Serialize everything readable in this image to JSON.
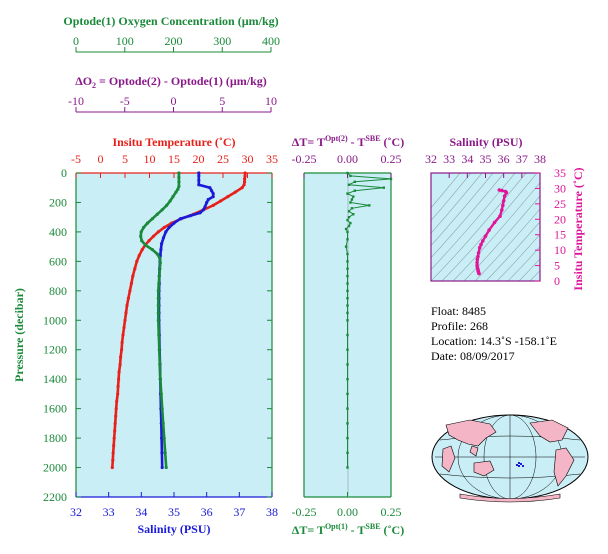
{
  "colors": {
    "green": "#1a8a3a",
    "red": "#e8201a",
    "blue": "#1a1ad8",
    "purple": "#8a1a8a",
    "magenta": "#e0169a",
    "panel_bg": "#c9eef6",
    "land": "#f4b6c6",
    "ocean": "#c9eef6"
  },
  "oxygen_axis": {
    "title": "Optode(1) Oxygen Concentration (µm/kg)",
    "ticks": [
      "0",
      "100",
      "200",
      "300",
      "400"
    ]
  },
  "delta_o2_axis": {
    "title_prefix": "ΔO",
    "title_sub": "2",
    "title_rest": " = Optode(2) - Optode(1)     (µm/kg)",
    "ticks": [
      "-10",
      "-5",
      "0",
      "5",
      "10"
    ]
  },
  "main_panel": {
    "top_title": "Insitu Temperature (˚C)",
    "top_ticks": [
      "-5",
      "0",
      "5",
      "10",
      "15",
      "20",
      "25",
      "30",
      "35"
    ],
    "bottom_title": "Salinity (PSU)",
    "bottom_ticks": [
      "32",
      "33",
      "34",
      "35",
      "36",
      "37",
      "38"
    ],
    "left_title": "Pressure (decibar)",
    "left_ticks": [
      "0",
      "200",
      "400",
      "600",
      "800",
      "1000",
      "1200",
      "1400",
      "1600",
      "1800",
      "2000",
      "2200"
    ]
  },
  "dt_panel": {
    "top_title_pre": "ΔT= T",
    "top_title_sup1": "Opt(2)",
    "top_title_mid": " - T",
    "top_title_sup2": "SBE",
    "top_title_post": " (˚C)",
    "top_ticks": [
      "-0.25",
      "0.00",
      "0.25"
    ],
    "bottom_title_pre": "ΔT= T",
    "bottom_title_sup1": "Opt(1)",
    "bottom_title_mid": " - T",
    "bottom_title_sup2": "SBE",
    "bottom_title_post": " (˚C)",
    "bottom_ticks": [
      "-0.25",
      "0.00",
      "0.25"
    ]
  },
  "ts_panel": {
    "top_title": "Salinity (PSU)",
    "top_ticks": [
      "32",
      "33",
      "34",
      "35",
      "36",
      "37",
      "38"
    ],
    "right_title": "Insitu Temperature (˚C)",
    "right_ticks": [
      "0",
      "5",
      "10",
      "15",
      "20",
      "25",
      "30",
      "35"
    ]
  },
  "float_info": {
    "float_line": "Float:  8485",
    "profile_line": "Profile:  268",
    "location_line": "Location:  14.3˚S  -158.1˚E",
    "date_line": "Date:  08/09/2017"
  },
  "chart_data": [
    {
      "type": "line",
      "name_hint": "profiles",
      "ylabel": "Pressure (decibar)",
      "ylim": [
        2200,
        0
      ],
      "series": [
        {
          "name": "Insitu Temperature (˚C)",
          "axis": "temperature",
          "xlim": [
            -5,
            35
          ],
          "points": [
            [
              29.5,
              0
            ],
            [
              29.5,
              20
            ],
            [
              29.4,
              40
            ],
            [
              29.4,
              60
            ],
            [
              29.3,
              80
            ],
            [
              28.9,
              100
            ],
            [
              27.5,
              130
            ],
            [
              26.0,
              160
            ],
            [
              24.5,
              190
            ],
            [
              23.0,
              220
            ],
            [
              21.0,
              250
            ],
            [
              19.0,
              280
            ],
            [
              16.5,
              310
            ],
            [
              14.5,
              340
            ],
            [
              13.0,
              370
            ],
            [
              11.8,
              400
            ],
            [
              10.8,
              430
            ],
            [
              9.9,
              460
            ],
            [
              9.1,
              490
            ],
            [
              8.5,
              520
            ],
            [
              7.9,
              560
            ],
            [
              7.4,
              600
            ],
            [
              7.0,
              650
            ],
            [
              6.6,
              700
            ],
            [
              6.3,
              750
            ],
            [
              6.0,
              800
            ],
            [
              5.7,
              850
            ],
            [
              5.4,
              900
            ],
            [
              5.2,
              950
            ],
            [
              5.0,
              1000
            ],
            [
              4.8,
              1050
            ],
            [
              4.6,
              1100
            ],
            [
              4.4,
              1150
            ],
            [
              4.3,
              1200
            ],
            [
              4.1,
              1250
            ],
            [
              4.0,
              1300
            ],
            [
              3.8,
              1350
            ],
            [
              3.7,
              1400
            ],
            [
              3.6,
              1450
            ],
            [
              3.5,
              1500
            ],
            [
              3.3,
              1550
            ],
            [
              3.2,
              1600
            ],
            [
              3.1,
              1650
            ],
            [
              3.0,
              1700
            ],
            [
              2.9,
              1750
            ],
            [
              2.8,
              1800
            ],
            [
              2.7,
              1850
            ],
            [
              2.6,
              1900
            ],
            [
              2.5,
              1950
            ],
            [
              2.4,
              2000
            ]
          ]
        },
        {
          "name": "Salinity (PSU)",
          "axis": "salinity",
          "xlim": [
            32,
            38
          ],
          "points": [
            [
              35.76,
              0
            ],
            [
              35.76,
              20
            ],
            [
              35.76,
              50
            ],
            [
              35.76,
              80
            ],
            [
              36.1,
              100
            ],
            [
              36.15,
              120
            ],
            [
              36.2,
              140
            ],
            [
              36.2,
              160
            ],
            [
              36.05,
              180
            ],
            [
              36.0,
              200
            ],
            [
              35.95,
              230
            ],
            [
              35.9,
              250
            ],
            [
              35.8,
              270
            ],
            [
              35.5,
              290
            ],
            [
              35.2,
              310
            ],
            [
              35.0,
              340
            ],
            [
              34.85,
              370
            ],
            [
              34.75,
              400
            ],
            [
              34.68,
              440
            ],
            [
              34.62,
              480
            ],
            [
              34.6,
              520
            ],
            [
              34.58,
              560
            ],
            [
              34.57,
              600
            ],
            [
              34.56,
              650
            ],
            [
              34.55,
              700
            ],
            [
              34.55,
              750
            ],
            [
              34.54,
              800
            ],
            [
              34.54,
              850
            ],
            [
              34.54,
              900
            ],
            [
              34.54,
              950
            ],
            [
              34.54,
              1000
            ],
            [
              34.55,
              1100
            ],
            [
              34.56,
              1200
            ],
            [
              34.57,
              1300
            ],
            [
              34.58,
              1400
            ],
            [
              34.59,
              1500
            ],
            [
              34.6,
              1600
            ],
            [
              34.61,
              1700
            ],
            [
              34.62,
              1800
            ],
            [
              34.63,
              1900
            ],
            [
              34.64,
              2000
            ]
          ]
        },
        {
          "name": "Optode(1) Oxygen Concentration (µm/kg)",
          "axis": "oxygen",
          "xlim": [
            0,
            400
          ],
          "points": [
            [
              210,
              0
            ],
            [
              210,
              30
            ],
            [
              210,
              60
            ],
            [
              210,
              90
            ],
            [
              208,
              110
            ],
            [
              204,
              130
            ],
            [
              198,
              160
            ],
            [
              192,
              190
            ],
            [
              185,
              220
            ],
            [
              176,
              250
            ],
            [
              166,
              280
            ],
            [
              156,
              310
            ],
            [
              146,
              340
            ],
            [
              138,
              370
            ],
            [
              133,
              400
            ],
            [
              132,
              430
            ],
            [
              134,
              460
            ],
            [
              142,
              490
            ],
            [
              156,
              520
            ],
            [
              166,
              550
            ],
            [
              171,
              580
            ],
            [
              172,
              610
            ],
            [
              171,
              650
            ],
            [
              170,
              700
            ],
            [
              169,
              750
            ],
            [
              168,
              800
            ],
            [
              168,
              850
            ],
            [
              168,
              900
            ],
            [
              168,
              950
            ],
            [
              168,
              1000
            ],
            [
              169,
              1100
            ],
            [
              170,
              1200
            ],
            [
              171,
              1300
            ],
            [
              172,
              1400
            ],
            [
              174,
              1500
            ],
            [
              176,
              1600
            ],
            [
              178,
              1700
            ],
            [
              180,
              1800
            ],
            [
              182,
              1900
            ],
            [
              184,
              2000
            ]
          ]
        }
      ]
    },
    {
      "type": "scatter",
      "name_hint": "delta_t",
      "xlabel": "ΔT (˚C)",
      "xlim": [
        -0.3,
        0.3
      ],
      "ylim": [
        2200,
        0
      ],
      "points": [
        [
          0.0,
          0
        ],
        [
          0.02,
          20
        ],
        [
          0.3,
          40
        ],
        [
          0.05,
          60
        ],
        [
          0.01,
          80
        ],
        [
          0.25,
          100
        ],
        [
          0.05,
          120
        ],
        [
          0.0,
          140
        ],
        [
          0.04,
          160
        ],
        [
          0.03,
          180
        ],
        [
          0.02,
          200
        ],
        [
          0.15,
          220
        ],
        [
          0.03,
          240
        ],
        [
          0.01,
          260
        ],
        [
          0.04,
          280
        ],
        [
          0.01,
          300
        ],
        [
          0.0,
          320
        ],
        [
          0.02,
          340
        ],
        [
          0.01,
          360
        ],
        [
          -0.01,
          380
        ],
        [
          0.0,
          400
        ],
        [
          0.0,
          450
        ],
        [
          -0.01,
          500
        ],
        [
          0.0,
          550
        ],
        [
          0.0,
          600
        ],
        [
          0.0,
          650
        ],
        [
          0.0,
          700
        ],
        [
          0.0,
          750
        ],
        [
          0.0,
          800
        ],
        [
          0.0,
          850
        ],
        [
          0.0,
          900
        ],
        [
          0.0,
          950
        ],
        [
          0.0,
          1000
        ],
        [
          0.0,
          1100
        ],
        [
          0.0,
          1200
        ],
        [
          0.0,
          1300
        ],
        [
          0.0,
          1400
        ],
        [
          0.0,
          1500
        ],
        [
          0.0,
          1600
        ],
        [
          0.0,
          1700
        ],
        [
          0.0,
          1800
        ],
        [
          0.0,
          1900
        ],
        [
          0.0,
          2000
        ]
      ]
    },
    {
      "type": "scatter",
      "name_hint": "ts_diagram",
      "xlabel": "Salinity (PSU)",
      "ylabel": "Insitu Temperature (˚C)",
      "xlim": [
        32,
        38
      ],
      "ylim": [
        0,
        35
      ],
      "points": [
        [
          34.64,
          2.4
        ],
        [
          34.62,
          2.8
        ],
        [
          34.6,
          3.2
        ],
        [
          34.58,
          3.7
        ],
        [
          34.56,
          4.3
        ],
        [
          34.54,
          5.0
        ],
        [
          34.54,
          6.0
        ],
        [
          34.55,
          7.0
        ],
        [
          34.58,
          7.9
        ],
        [
          34.62,
          9.1
        ],
        [
          34.68,
          10.8
        ],
        [
          34.75,
          11.8
        ],
        [
          34.85,
          13.0
        ],
        [
          35.0,
          14.5
        ],
        [
          35.2,
          16.5
        ],
        [
          35.5,
          19.0
        ],
        [
          35.8,
          21.0
        ],
        [
          35.9,
          23.0
        ],
        [
          35.95,
          24.5
        ],
        [
          36.0,
          26.0
        ],
        [
          36.05,
          27.5
        ],
        [
          36.15,
          28.6
        ],
        [
          36.1,
          29.0
        ],
        [
          35.9,
          29.3
        ],
        [
          35.76,
          29.5
        ]
      ]
    }
  ]
}
